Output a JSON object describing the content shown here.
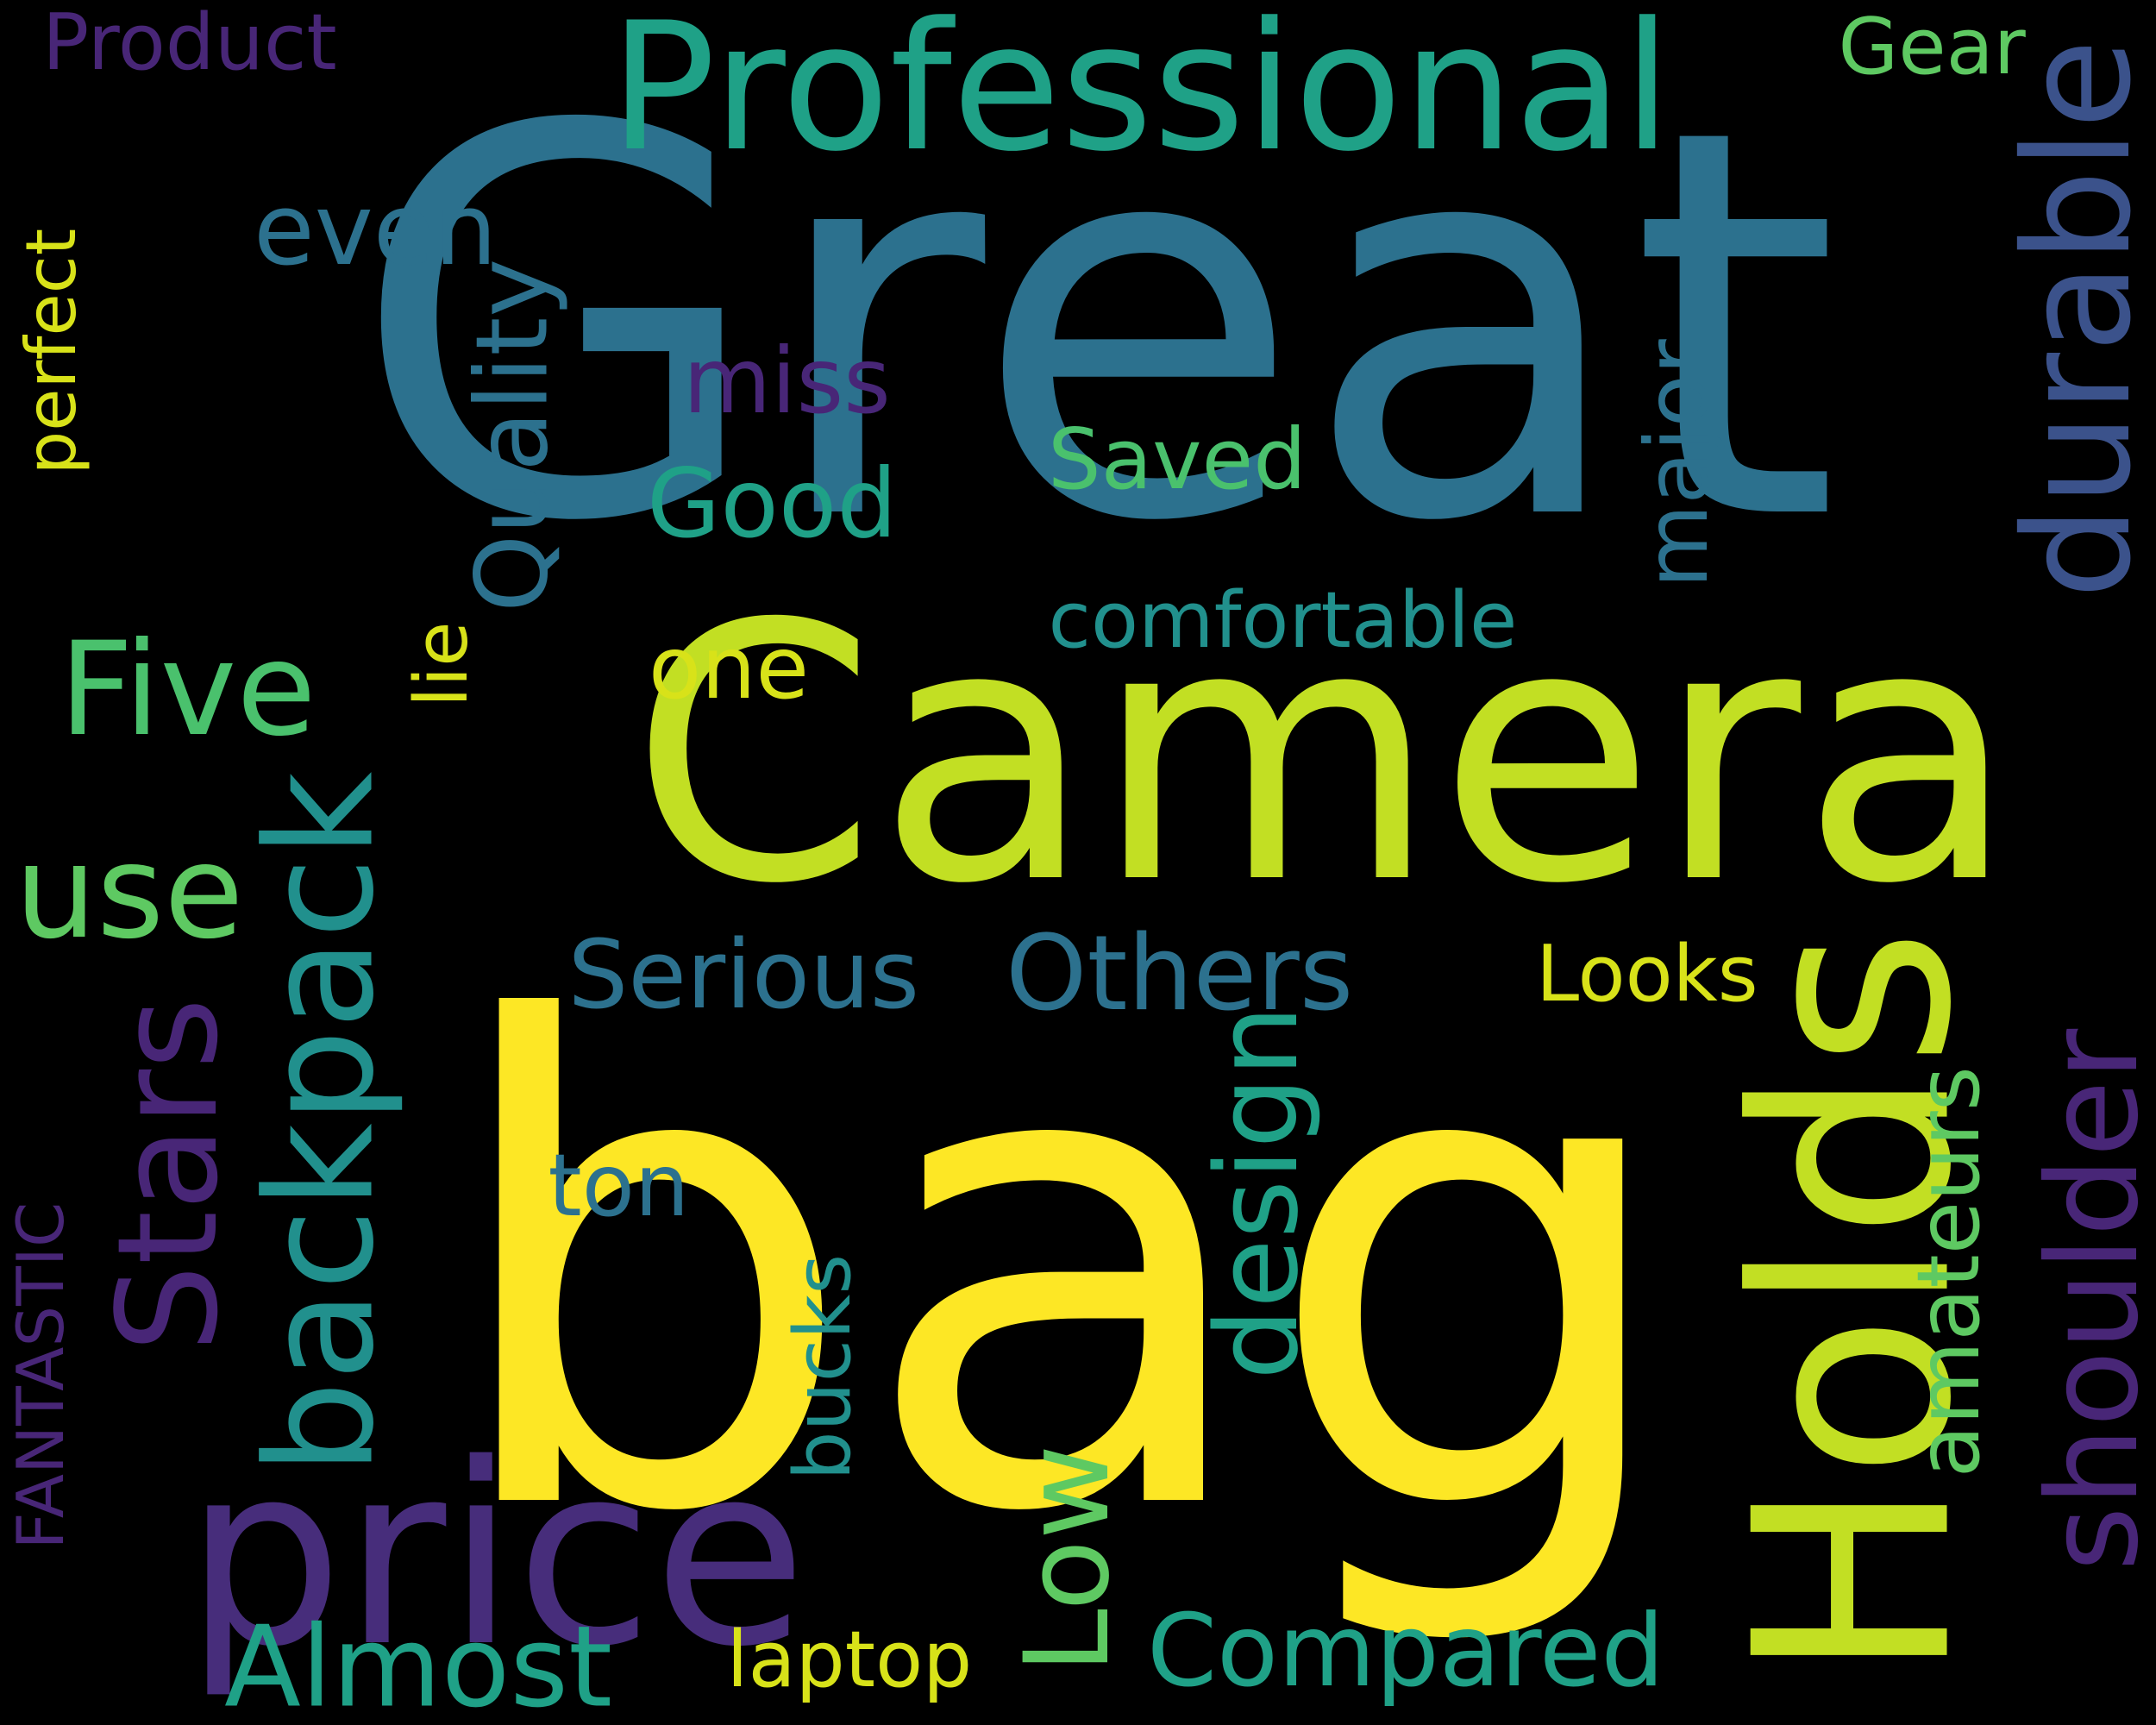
{
  "words": [
    {
      "text": "Great",
      "color": "#2c718e",
      "rot": false
    },
    {
      "text": "Camera",
      "color": "#c2df23",
      "rot": false
    },
    {
      "text": "bag",
      "color": "#fde725",
      "rot": false
    },
    {
      "text": "Professional",
      "color": "#1fa187",
      "rot": false
    },
    {
      "text": "price",
      "color": "#472d7b",
      "rot": false
    },
    {
      "text": "Holds",
      "color": "#c2df23",
      "rot": true
    },
    {
      "text": "durable",
      "color": "#3b528b",
      "rot": true
    },
    {
      "text": "shoulder",
      "color": "#482677",
      "rot": true
    },
    {
      "text": "backpack",
      "color": "#21908d",
      "rot": true
    },
    {
      "text": "Stars",
      "color": "#482677",
      "rot": true
    },
    {
      "text": "use",
      "color": "#5ec962",
      "rot": false
    },
    {
      "text": "Five",
      "color": "#4ac16d",
      "rot": false
    },
    {
      "text": "perfect",
      "color": "#d8e219",
      "rot": true
    },
    {
      "text": "even",
      "color": "#2c718e",
      "rot": false
    },
    {
      "text": "miss",
      "color": "#482677",
      "rot": false
    },
    {
      "text": "Good",
      "color": "#1fa187",
      "rot": false
    },
    {
      "text": "Quality",
      "color": "#2c718e",
      "rot": true
    },
    {
      "text": "Saved",
      "color": "#4ac16d",
      "rot": false
    },
    {
      "text": "major",
      "color": "#2c718e",
      "rot": true
    },
    {
      "text": "comfortable",
      "color": "#21908d",
      "rot": false
    },
    {
      "text": "one",
      "color": "#d8e219",
      "rot": false
    },
    {
      "text": "lie",
      "color": "#d8e219",
      "rot": true
    },
    {
      "text": "Serious",
      "color": "#2c718e",
      "rot": false
    },
    {
      "text": "Others",
      "color": "#2c718e",
      "rot": false
    },
    {
      "text": "Looks",
      "color": "#d8e219",
      "rot": false
    },
    {
      "text": "design",
      "color": "#1fa187",
      "rot": true
    },
    {
      "text": "ton",
      "color": "#2c718e",
      "rot": false
    },
    {
      "text": "amateurs",
      "color": "#5ec962",
      "rot": true
    },
    {
      "text": "Low",
      "color": "#5ec962",
      "rot": true
    },
    {
      "text": "bucks",
      "color": "#21908d",
      "rot": true
    },
    {
      "text": "FANTASTIC",
      "color": "#482677",
      "rot": true
    },
    {
      "text": "Almost",
      "color": "#1fa187",
      "rot": false
    },
    {
      "text": "laptop",
      "color": "#d8e219",
      "rot": false
    },
    {
      "text": "Compared",
      "color": "#1fa187",
      "rot": false
    },
    {
      "text": "Product",
      "color": "#482677",
      "rot": false
    },
    {
      "text": "Gear",
      "color": "#5ec962",
      "rot": false
    }
  ]
}
